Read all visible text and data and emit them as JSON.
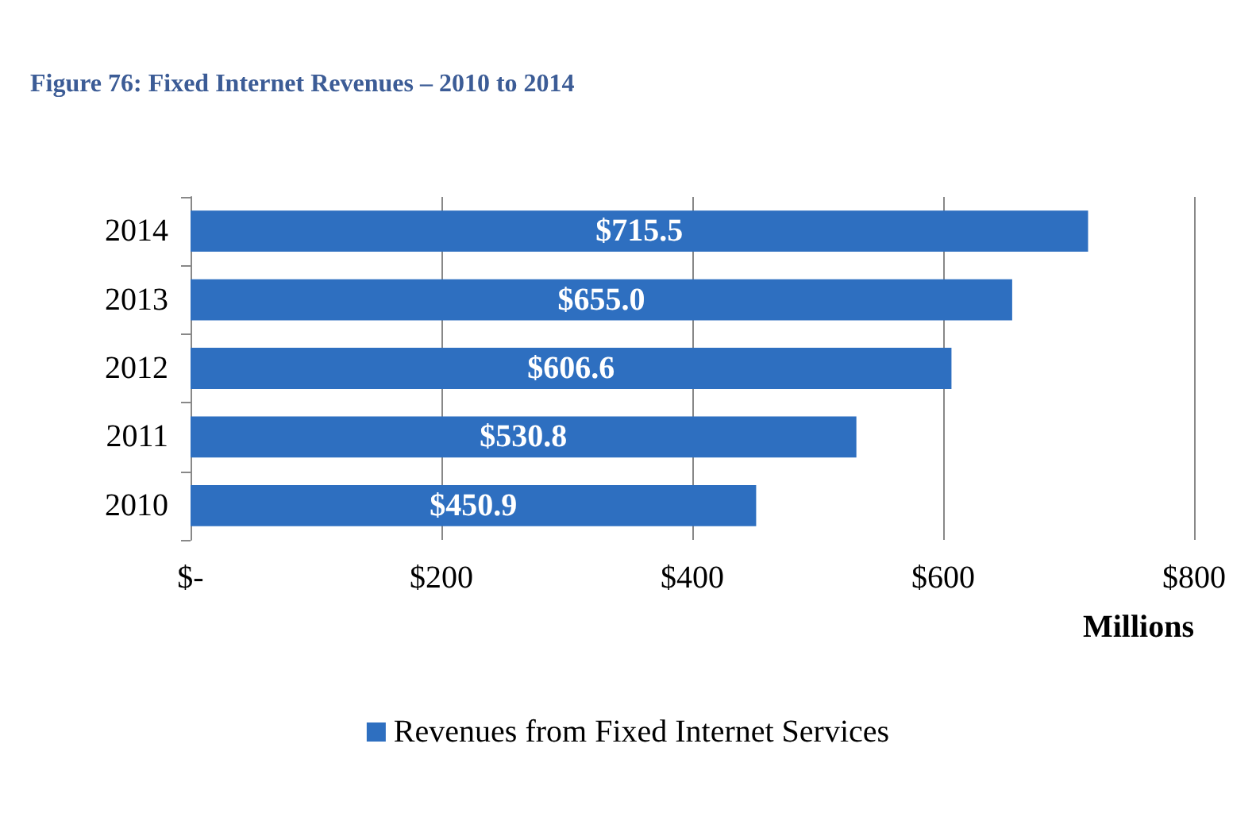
{
  "chart_data": {
    "type": "bar",
    "orientation": "horizontal",
    "title": "Figure 76: Fixed Internet Revenues – 2010 to 2014",
    "xlabel": "Millions",
    "categories": [
      "2014",
      "2013",
      "2012",
      "2011",
      "2010"
    ],
    "series": [
      {
        "name": "Revenues from Fixed Internet Services",
        "color": "#2e6fc0",
        "values": [
          715.5,
          655.0,
          606.6,
          530.8,
          450.9
        ],
        "value_labels": [
          "$715.5",
          "$655.0",
          "$606.6",
          "$530.8",
          "$450.9"
        ]
      }
    ],
    "xlim": [
      0,
      800
    ],
    "xticks": [
      {
        "value": 0,
        "label": "$-"
      },
      {
        "value": 200,
        "label": "$200"
      },
      {
        "value": 400,
        "label": "$400"
      },
      {
        "value": 600,
        "label": "$600"
      },
      {
        "value": 800,
        "label": "$800"
      }
    ],
    "grid": "x",
    "legend": "bottom"
  }
}
